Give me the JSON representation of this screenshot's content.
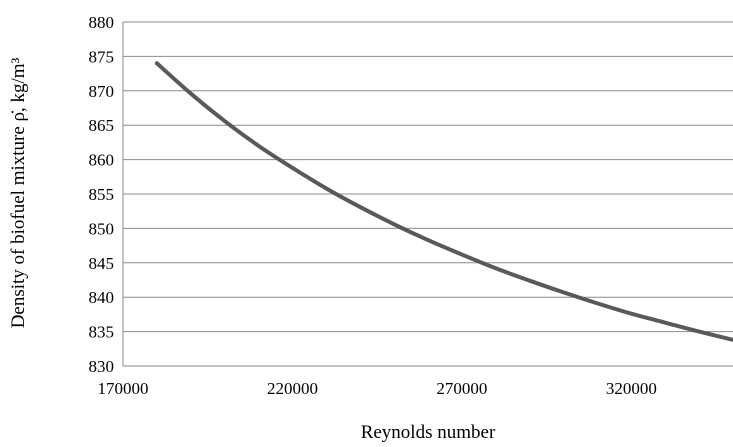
{
  "chart_data": {
    "type": "line",
    "title": "",
    "xlabel": "Reynolds number",
    "ylabel": "Density of biofuel mixture ρ̇, kg/m³",
    "xlim": [
      170000,
      350000
    ],
    "ylim": [
      830,
      880
    ],
    "x_ticks": [
      170000,
      220000,
      270000,
      320000
    ],
    "y_ticks": [
      830,
      835,
      840,
      845,
      850,
      855,
      860,
      865,
      870,
      875,
      880
    ],
    "grid": "horizontal",
    "legend": "none",
    "series": [
      {
        "color": "#595959",
        "x": [
          180000,
          190000,
          200000,
          210000,
          220000,
          230000,
          240000,
          250000,
          260000,
          270000,
          280000,
          290000,
          300000,
          310000,
          320000,
          330000,
          340000,
          350000
        ],
        "y": [
          874.0,
          869.6,
          865.6,
          862.0,
          858.8,
          855.8,
          853.1,
          850.6,
          848.3,
          846.2,
          844.2,
          842.4,
          840.7,
          839.1,
          837.6,
          836.3,
          835.0,
          833.8
        ]
      }
    ]
  }
}
